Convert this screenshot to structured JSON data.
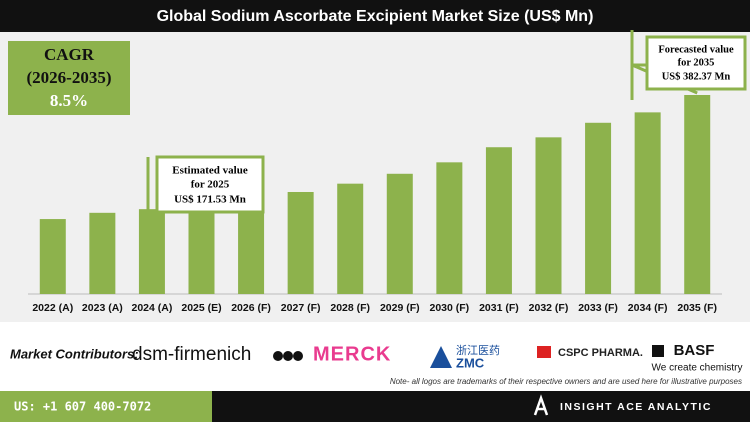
{
  "chart_data": {
    "type": "bar",
    "title": "Global Sodium Ascorbate Excipient Market Size (US$ Mn)",
    "categories": [
      "2022 (A)",
      "2023 (A)",
      "2024 (A)",
      "2025 (E)",
      "2026 (F)",
      "2027 (F)",
      "2028 (F)",
      "2029 (F)",
      "2030 (F)",
      "2031 (F)",
      "2032 (F)",
      "2033 (F)",
      "2034 (F)",
      "2035 (F)"
    ],
    "values": [
      144,
      156,
      163,
      171.53,
      183,
      196,
      212,
      231,
      253,
      282,
      301,
      329,
      349,
      382.37
    ],
    "color": "#8db24c",
    "annotations": [
      {
        "lines": [
          "Estimated value",
          "for 2025",
          "US$ 171.53 Mn"
        ]
      },
      {
        "lines": [
          "Forecasted value",
          "for 2035",
          "US$ 382.37 Mn"
        ]
      }
    ]
  },
  "cagr": {
    "label": "CAGR",
    "period": "(2026-2035)",
    "value": "8.5%"
  },
  "contributors": {
    "label": "Market Contributors:",
    "logos": [
      "dsm-firmenich",
      "MERCK",
      "浙江医药",
      "ZMC",
      "CSPC PHARMA.",
      "BASF",
      "We create chemistry"
    ]
  },
  "note": "Note- all logos are trademarks of their respective owners and are used here for illustrative purposes",
  "footer": {
    "phone": "US: +1 607 400-7072",
    "brand": "INSIGHT ACE ANALYTIC"
  }
}
